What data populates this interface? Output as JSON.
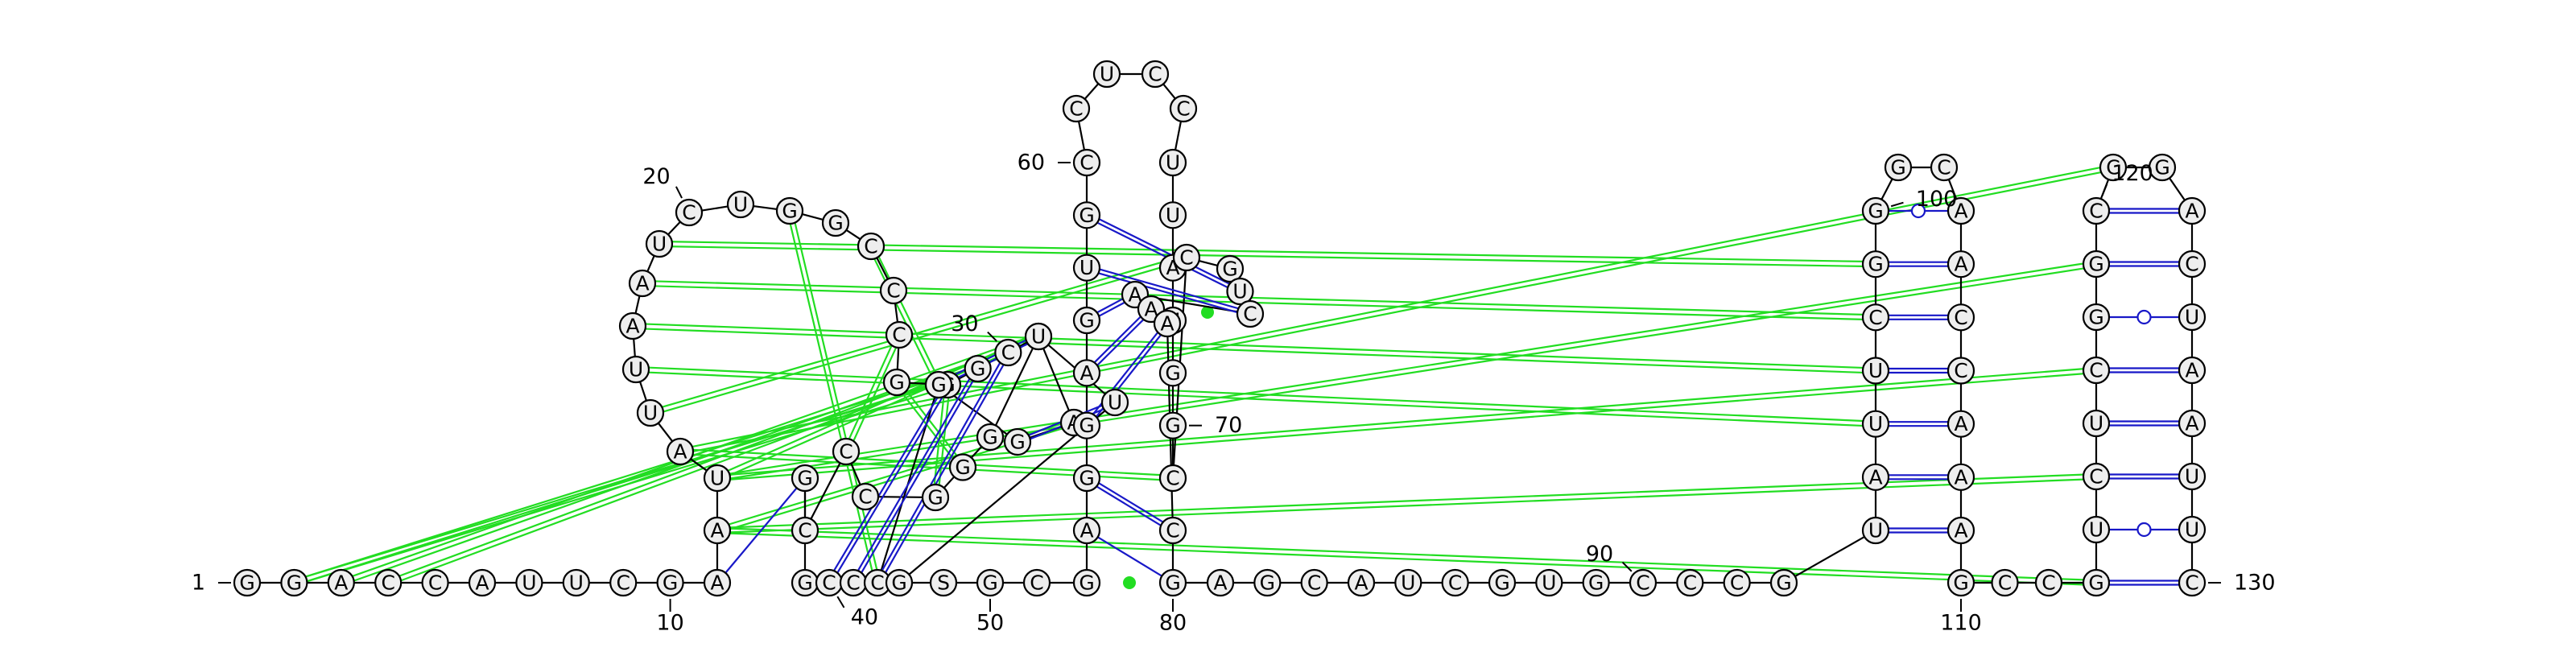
{
  "diagram": {
    "sequence": "GGACCAUUCGAAUAUUAAUCUGGCCCGGGCAGGGCCCGGCCCGGAUUGSGCGAGGAGUGCCUCCUUAUGGCCGUCAAACGAGCAUCGUGCCCGUAUUCGGGCAACCAAAGCCGUCUCGGCCGACUAAUUC",
    "number_labels": [
      {
        "text": "1",
        "index": 1
      },
      {
        "text": "10",
        "index": 10
      },
      {
        "text": "20",
        "index": 20
      },
      {
        "text": "30",
        "index": 30
      },
      {
        "text": "40",
        "index": 40
      },
      {
        "text": "50",
        "index": 50
      },
      {
        "text": "60",
        "index": 60
      },
      {
        "text": "70",
        "index": 70
      },
      {
        "text": "80",
        "index": 80
      },
      {
        "text": "90",
        "index": 90
      },
      {
        "text": "100",
        "index": 100
      },
      {
        "text": "110",
        "index": 110
      },
      {
        "text": "120",
        "index": 120
      },
      {
        "text": "130",
        "index": 130
      }
    ],
    "colors": {
      "backbone": "#000000",
      "base_pair": "#1818c8",
      "pseudoknot": "#22dd22",
      "nucleotide_fill": "#eeeeee"
    }
  }
}
